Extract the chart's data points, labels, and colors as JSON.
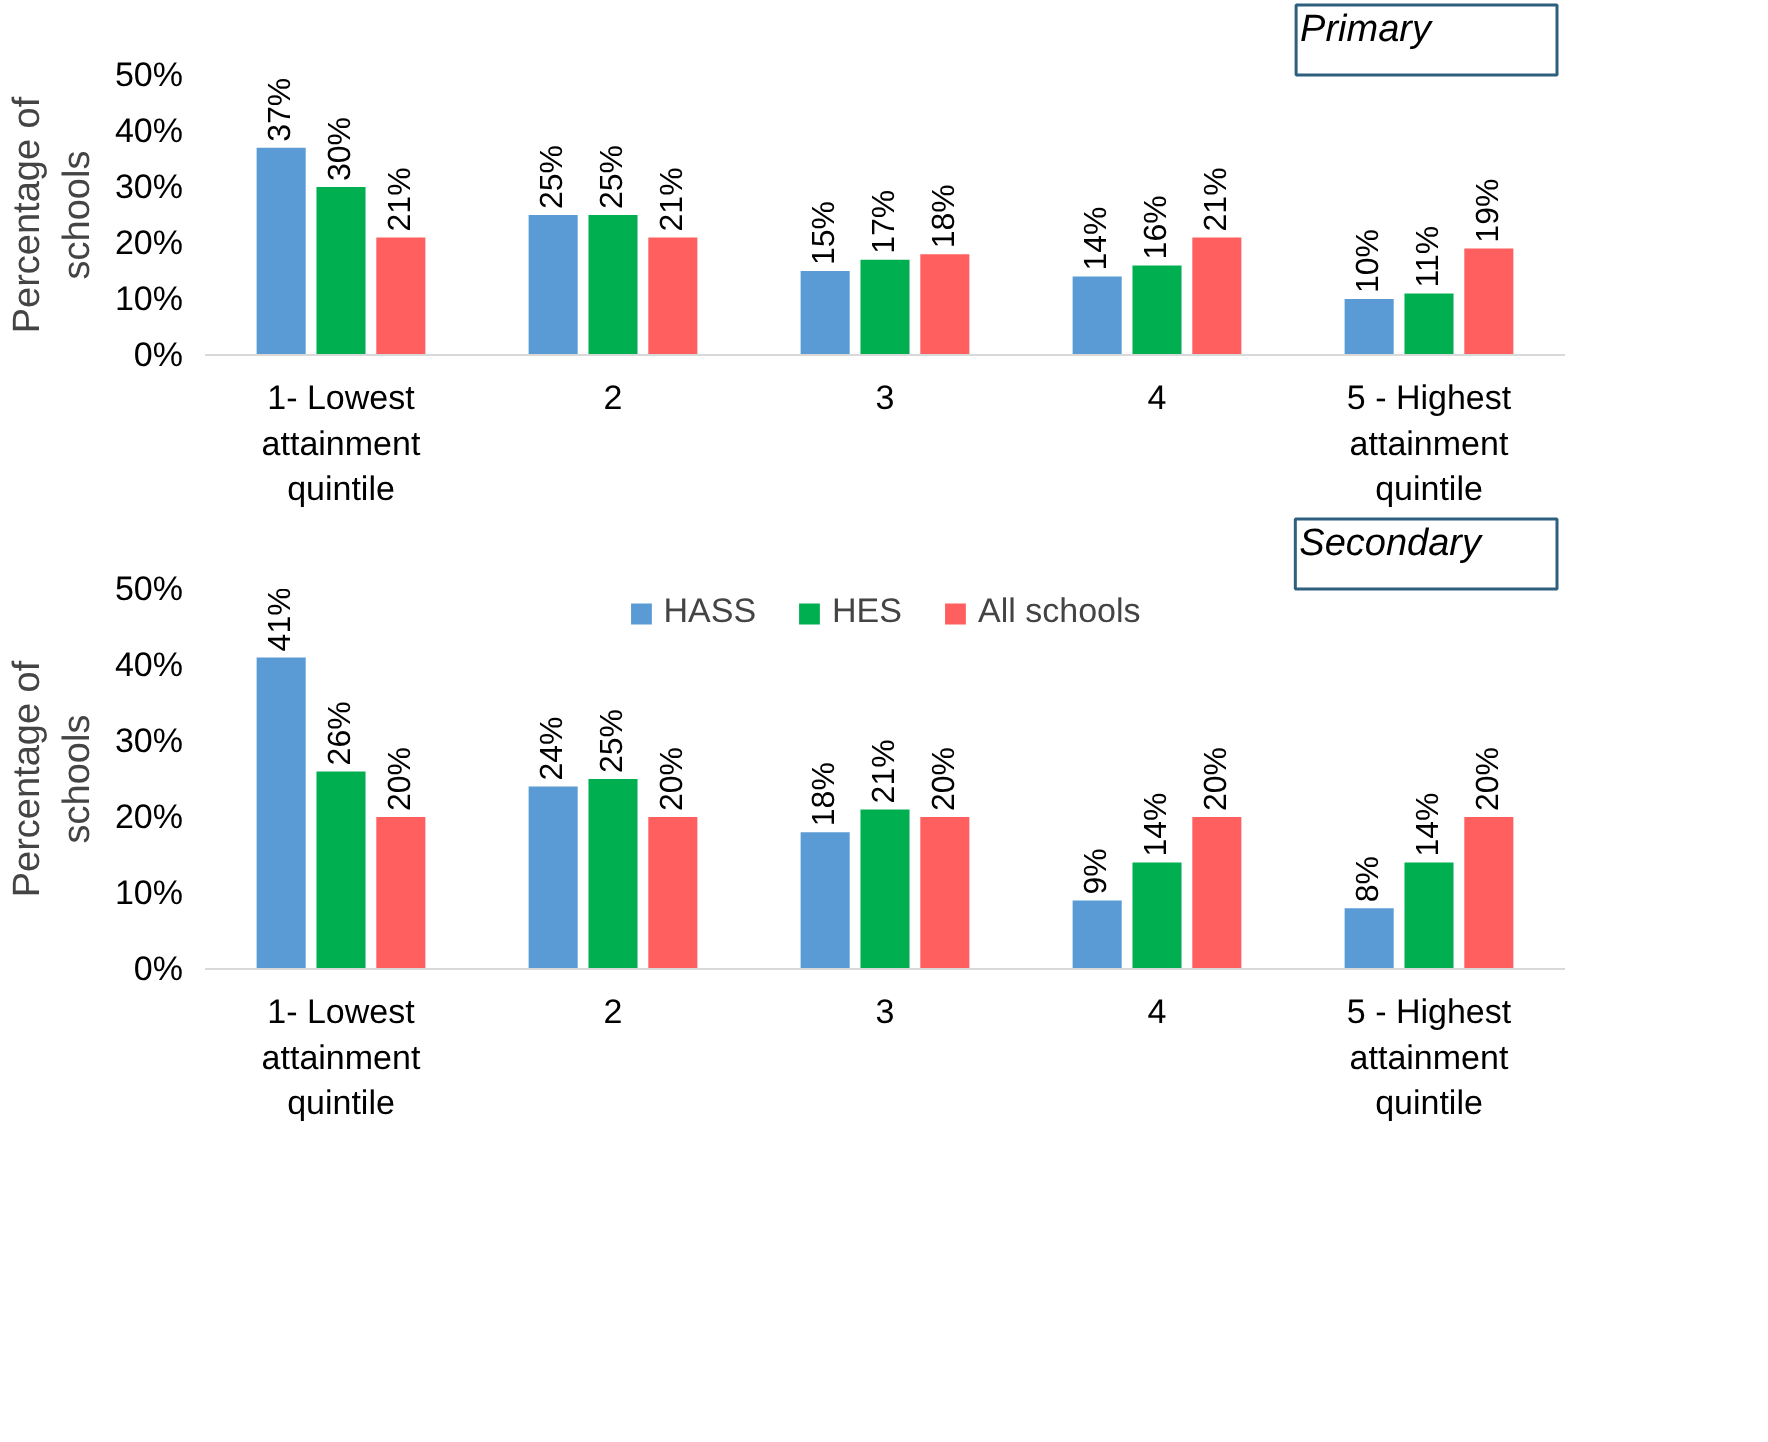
{
  "chart_data": [
    {
      "type": "bar",
      "ylabel": "Percentage of schools",
      "annotations": [
        "Primary"
      ],
      "categories": [
        "1- Lowest attainment quintile",
        "2",
        "3",
        "4",
        "5 - Highest attainment quintile"
      ],
      "series": [
        {
          "color": "#5b9bd5",
          "values": [
            37,
            25,
            15,
            14,
            10
          ],
          "value_labels": [
            "37%",
            "25%",
            "15%",
            "14%",
            "10%"
          ]
        },
        {
          "color": "#00b050",
          "values": [
            30,
            25,
            17,
            16,
            11
          ],
          "value_labels": [
            "30%",
            "25%",
            "17%",
            "16%",
            "11%"
          ]
        },
        {
          "color": "#ff5f5f",
          "values": [
            21,
            21,
            18,
            21,
            19
          ],
          "value_labels": [
            "21%",
            "21%",
            "18%",
            "21%",
            "19%"
          ]
        }
      ],
      "ylim": [
        0,
        50
      ],
      "yticks": [
        {
          "value": 0,
          "label": "0%"
        },
        {
          "value": 10,
          "label": "10%"
        },
        {
          "value": 20,
          "label": "20%"
        },
        {
          "value": 30,
          "label": "30%"
        },
        {
          "value": 40,
          "label": "40%"
        },
        {
          "value": 50,
          "label": "50%"
        }
      ],
      "grid": false,
      "legend": false
    },
    {
      "type": "bar",
      "ylabel": "Percentage of schools",
      "annotations": [
        "Secondary"
      ],
      "categories": [
        "1- Lowest attainment quintile",
        "2",
        "3",
        "4",
        "5 - Highest attainment quintile"
      ],
      "series": [
        {
          "name": "HASS",
          "color": "#5b9bd5",
          "values": [
            41,
            24,
            18,
            9,
            8
          ],
          "value_labels": [
            "41%",
            "24%",
            "18%",
            "9%",
            "8%"
          ]
        },
        {
          "name": "HES",
          "color": "#00b050",
          "values": [
            26,
            25,
            21,
            14,
            14
          ],
          "value_labels": [
            "26%",
            "25%",
            "21%",
            "14%",
            "14%"
          ]
        },
        {
          "name": "All schools",
          "color": "#ff5f5f",
          "values": [
            20,
            20,
            20,
            20,
            20
          ],
          "value_labels": [
            "20%",
            "20%",
            "20%",
            "20%",
            "20%"
          ]
        }
      ],
      "ylim": [
        0,
        50
      ],
      "yticks": [
        {
          "value": 0,
          "label": "0%"
        },
        {
          "value": 10,
          "label": "10%"
        },
        {
          "value": 20,
          "label": "20%"
        },
        {
          "value": 30,
          "label": "30%"
        },
        {
          "value": 40,
          "label": "40%"
        },
        {
          "value": 50,
          "label": "50%"
        }
      ],
      "grid": false,
      "legend": "top"
    }
  ]
}
